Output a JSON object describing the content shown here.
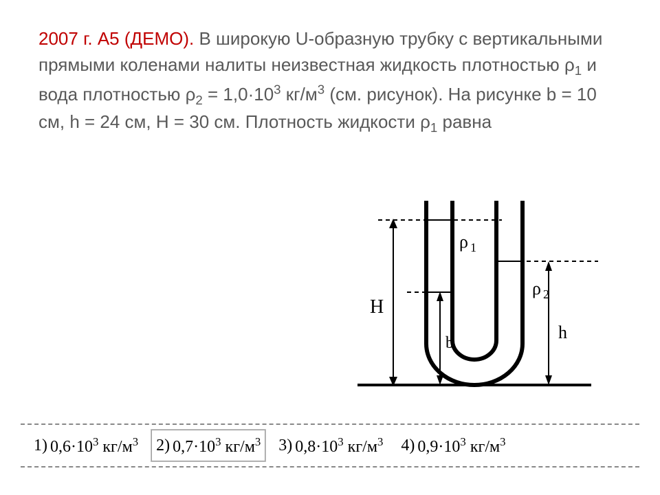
{
  "problem": {
    "lead": "2007 г. А5 (ДЕМО).",
    "body_html": "В широкую U-образную трубку с вертикальными прямыми коленами налиты неизвестная жидкость плотностью ρ<span class='sub'>1</span> и вода плотностью ρ<span class='sub'>2</span> = 1,0·10<span class='sup'>3</span> кг/м<span class='sup'>3</span> (см. рисунок). На рисунке b = 10 см, h = 24 см, H = 30 см. Плотность жидкости ρ<span class='sub'>1</span> равна",
    "lead_color": "#c00000",
    "body_color": "#595959",
    "fontsize": 26
  },
  "diagram": {
    "labels": {
      "H": "H",
      "b": "b",
      "h": "h",
      "rho1": "ρ1",
      "rho2": "ρ2"
    },
    "stroke_color": "#000000",
    "stroke_width_outer": 6,
    "stroke_width_arrow": 2,
    "font_family": "Times New Roman",
    "font_size_big": 26,
    "font_size_small": 22
  },
  "answers": {
    "items": [
      {
        "num": "1)",
        "value_html": "0,6·10<span class='sup'>3</span> кг/м<span class='sup'>3</span>"
      },
      {
        "num": "2)",
        "value_html": "0,7·10<span class='sup'>3</span> кг/м<span class='sup'>3</span>"
      },
      {
        "num": "3)",
        "value_html": "0,8·10<span class='sup'>3</span> кг/м<span class='sup'>3</span>"
      },
      {
        "num": "4)",
        "value_html": "0,9·10<span class='sup'>3</span> кг/м<span class='sup'>3</span>"
      }
    ],
    "picked_index": 1,
    "font_family": "Times New Roman",
    "font_size": 24,
    "border_dash_color": "#888888"
  },
  "colors": {
    "background": "#ffffff",
    "text_body": "#595959",
    "text_lead": "#c00000",
    "diagram_stroke": "#000000"
  }
}
